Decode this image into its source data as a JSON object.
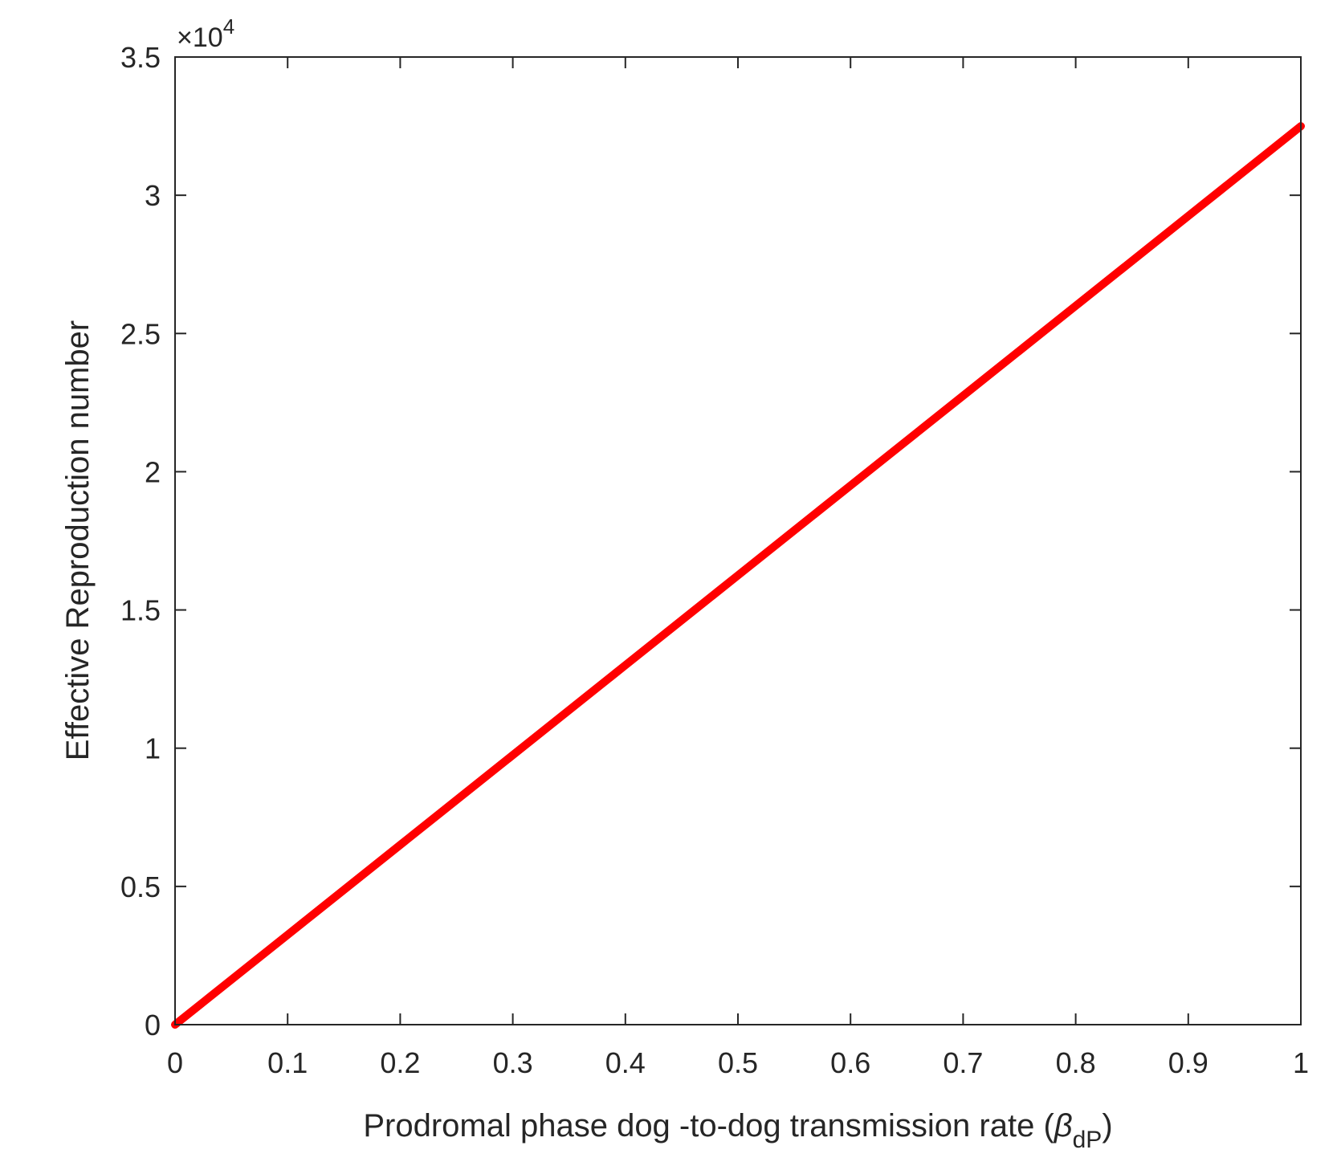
{
  "chart_data": {
    "type": "line",
    "xlabel": "Prodromal phase dog -to-dog transmission rate",
    "xlabel_symbol": "β",
    "xlabel_subscript": "dP",
    "ylabel": "Effective Reproduction number",
    "y_exponent_prefix": "×10",
    "y_exponent_power": "4",
    "xlim": [
      0,
      1
    ],
    "ylim": [
      0,
      35000
    ],
    "x_ticks": [
      0,
      0.1,
      0.2,
      0.3,
      0.4,
      0.5,
      0.6,
      0.7,
      0.8,
      0.9,
      1
    ],
    "x_tick_labels": [
      "0",
      "0.1",
      "0.2",
      "0.3",
      "0.4",
      "0.5",
      "0.6",
      "0.7",
      "0.8",
      "0.9",
      "1"
    ],
    "y_ticks": [
      0,
      5000,
      10000,
      15000,
      20000,
      25000,
      30000,
      35000
    ],
    "y_tick_labels": [
      "0",
      "0.5",
      "1",
      "1.5",
      "2",
      "2.5",
      "3",
      "3.5"
    ],
    "grid": false,
    "line_color": "#ff0000",
    "series": [
      {
        "x": [
          0,
          0.1,
          0.2,
          0.3,
          0.4,
          0.5,
          0.6,
          0.7,
          0.8,
          0.9,
          1
        ],
        "y": [
          0,
          3250,
          6500,
          9750,
          13000,
          16250,
          19500,
          22750,
          26000,
          29250,
          32500
        ]
      }
    ]
  }
}
